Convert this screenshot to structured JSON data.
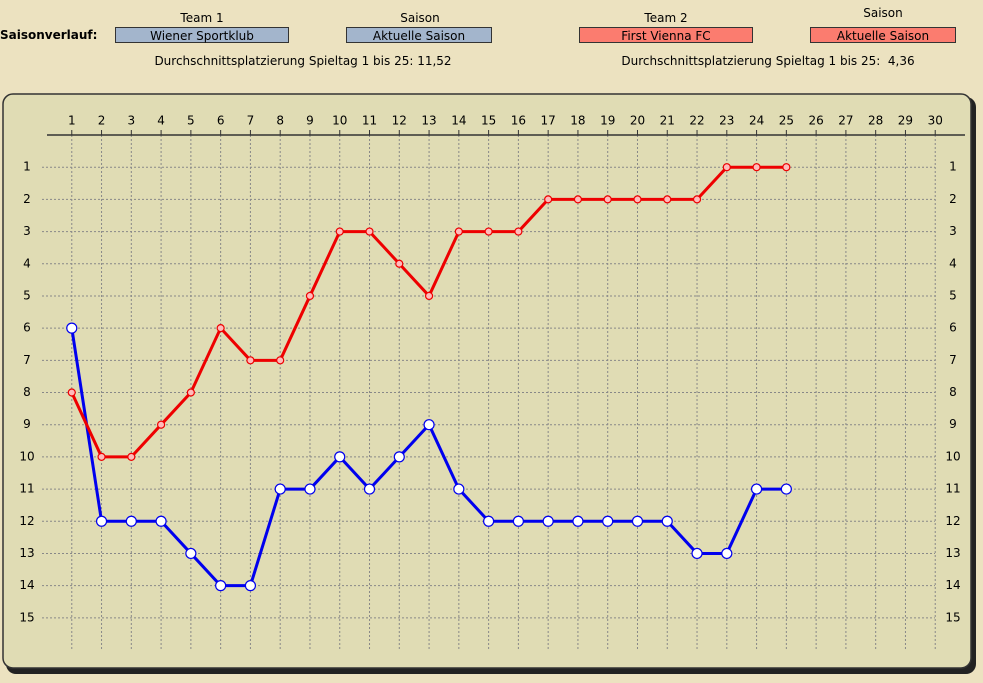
{
  "header": {
    "label": "Saisonverlauf:",
    "team1_label": "Team 1",
    "season1_label": "Saison",
    "season1_value": "Aktuelle Saison",
    "team2_label": "Team 2",
    "season2_label": "Saison",
    "season2_value": "Aktuelle Saison",
    "average1": "Durchschnittsplatzierung Spieltag 1 bis 25: 11,52",
    "average2": "Durchschnittsplatzierung Spieltag 1 bis 25:  4,36"
  },
  "chart_data": {
    "type": "line",
    "x": [
      1,
      2,
      3,
      4,
      5,
      6,
      7,
      8,
      9,
      10,
      11,
      12,
      13,
      14,
      15,
      16,
      17,
      18,
      19,
      20,
      21,
      22,
      23,
      24,
      25
    ],
    "series": [
      {
        "name": "Wiener Sportklub",
        "color": "#0000ee",
        "values": [
          6,
          12,
          12,
          12,
          13,
          14,
          14,
          11,
          11,
          10,
          11,
          10,
          9,
          11,
          12,
          12,
          12,
          12,
          12,
          12,
          12,
          13,
          13,
          11,
          11
        ]
      },
      {
        "name": "First Vienna FC",
        "color": "#ee0000",
        "values": [
          8,
          10,
          10,
          9,
          8,
          6,
          7,
          7,
          5,
          3,
          3,
          4,
          5,
          3,
          3,
          3,
          2,
          2,
          2,
          2,
          2,
          2,
          1,
          1,
          1
        ]
      }
    ],
    "xlim": [
      0,
      31
    ],
    "xticks": [
      1,
      2,
      3,
      4,
      5,
      6,
      7,
      8,
      9,
      10,
      11,
      12,
      13,
      14,
      15,
      16,
      17,
      18,
      19,
      20,
      21,
      22,
      23,
      24,
      25,
      26,
      27,
      28,
      29,
      30
    ],
    "ylim": [
      16,
      0
    ],
    "yticks": [
      1,
      2,
      3,
      4,
      5,
      6,
      7,
      8,
      9,
      10,
      11,
      12,
      13,
      14,
      15
    ],
    "grid": true
  }
}
